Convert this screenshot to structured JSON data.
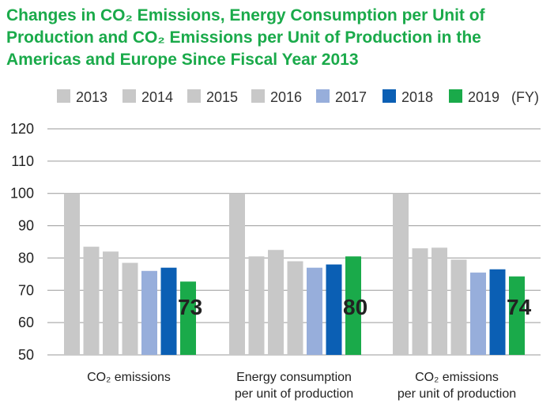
{
  "title_lines": [
    "Changes in CO₂ Emissions, Energy Consumption per Unit of",
    "Production and CO₂ Emissions per Unit of Production in the",
    "Americas and Europe Since Fiscal Year 2013"
  ],
  "legend_unit": "(FY)",
  "colors": {
    "title": "#1aaa4a",
    "2013": "#c8c8c8",
    "2014": "#c8c8c8",
    "2015": "#c8c8c8",
    "2016": "#c8c8c8",
    "2017": "#97aedb",
    "2018": "#0b5fb4",
    "2019": "#1aaa4a",
    "grid": "#9a9a9a"
  },
  "chart_data": {
    "type": "bar",
    "title": "Changes in CO₂ Emissions, Energy Consumption per Unit of Production and CO₂ Emissions per Unit of Production in the Americas and Europe Since Fiscal Year 2013",
    "categories": [
      [
        "CO₂ emissions"
      ],
      [
        "Energy consumption",
        "per unit of production"
      ],
      [
        "CO₂ emissions",
        "per unit of production"
      ]
    ],
    "series": [
      {
        "name": "2013",
        "values": [
          100,
          100,
          100
        ]
      },
      {
        "name": "2014",
        "values": [
          83.5,
          80.5,
          83
        ]
      },
      {
        "name": "2015",
        "values": [
          82,
          82.5,
          83.2
        ]
      },
      {
        "name": "2016",
        "values": [
          78.5,
          79,
          79.5
        ]
      },
      {
        "name": "2017",
        "values": [
          76,
          77,
          75.5
        ]
      },
      {
        "name": "2018",
        "values": [
          77,
          78,
          76.5
        ]
      },
      {
        "name": "2019",
        "values": [
          72.7,
          80.5,
          74.3
        ]
      }
    ],
    "data_labels": [
      "73",
      "80",
      "74"
    ],
    "yticks": [
      50,
      60,
      70,
      80,
      90,
      100,
      110,
      120
    ],
    "ylim": [
      50,
      120
    ],
    "grid": true,
    "legend_position": "top"
  }
}
